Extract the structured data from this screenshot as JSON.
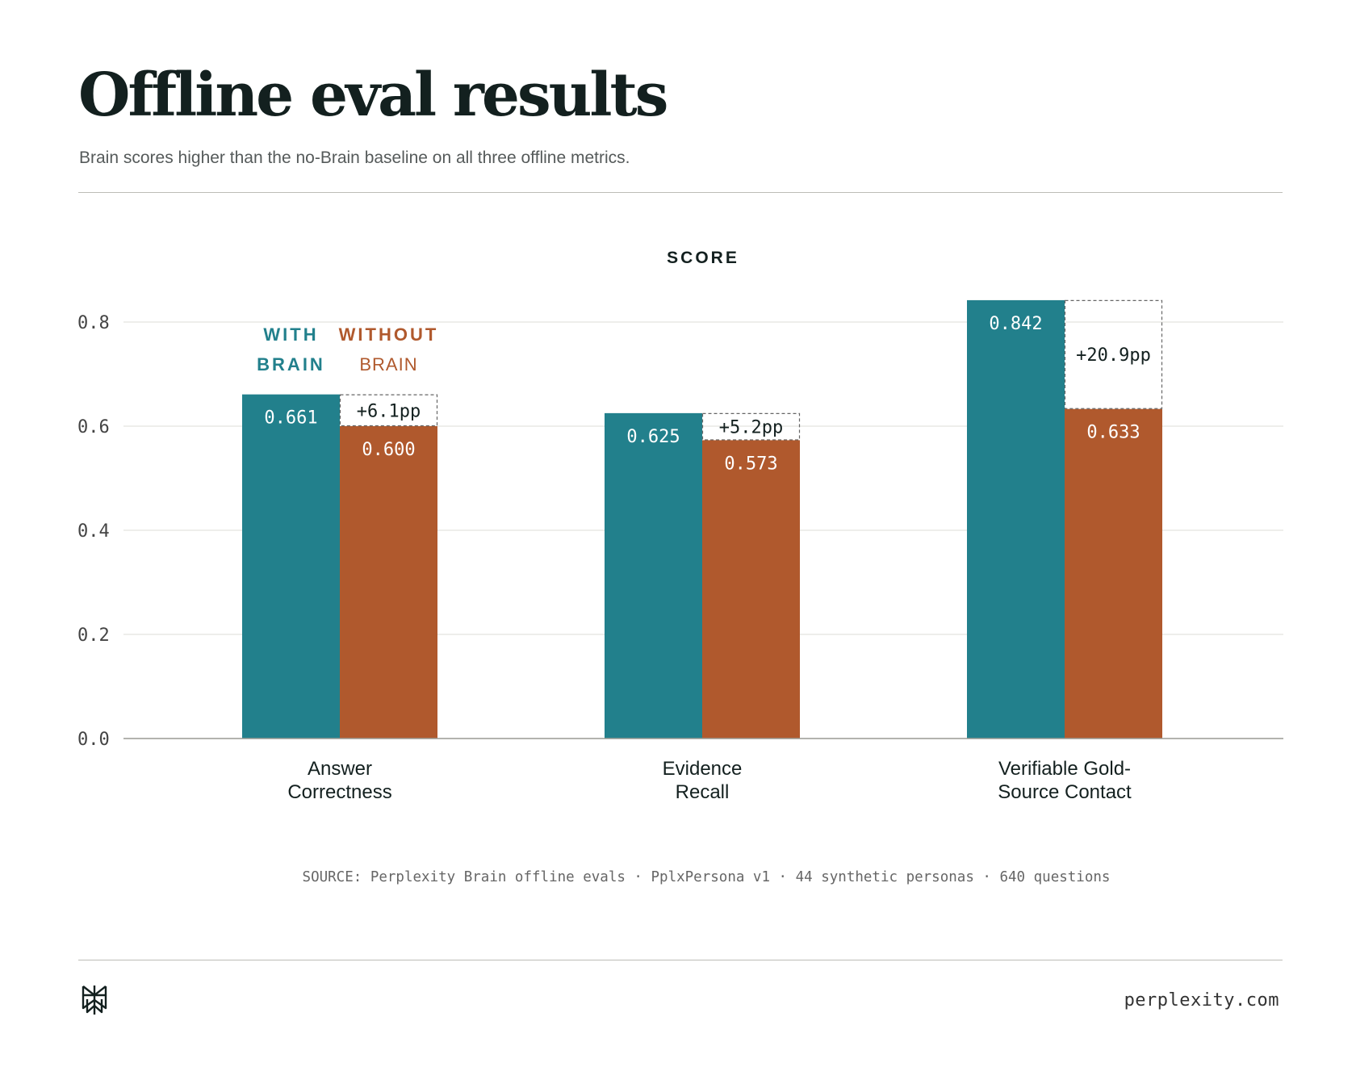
{
  "header": {
    "title": "Offline eval results",
    "subtitle": "Brain scores higher than the no-Brain baseline on all three offline metrics."
  },
  "legend": {
    "with_line1": "WITH",
    "with_line2": "BRAIN",
    "without_line1": "WITHOUT",
    "without_line2": "BRAIN"
  },
  "colors": {
    "with_brain": "#22808c",
    "without_brain": "#b0592d",
    "text": "#13201f",
    "grid": "#e3e3df",
    "axis": "#9a9a94"
  },
  "chart_data": {
    "type": "bar",
    "ylabel": "SCORE",
    "ylim": [
      0,
      0.8
    ],
    "yticks": [
      "0.0",
      "0.2",
      "0.4",
      "0.6",
      "0.8"
    ],
    "grid": true,
    "categories": [
      [
        "Answer",
        "Correctness"
      ],
      [
        "Evidence",
        "Recall"
      ],
      [
        "Verifiable Gold-",
        "Source Contact"
      ]
    ],
    "series": [
      {
        "name": "WITH BRAIN",
        "values": [
          0.661,
          0.625,
          0.842
        ],
        "labels": [
          "0.661",
          "0.625",
          "0.842"
        ]
      },
      {
        "name": "WITHOUT BRAIN",
        "values": [
          0.6,
          0.573,
          0.633
        ],
        "labels": [
          "0.600",
          "0.573",
          "0.633"
        ]
      }
    ],
    "deltas": [
      "+6.1pp",
      "+5.2pp",
      "+20.9pp"
    ]
  },
  "footer": {
    "source": "SOURCE: Perplexity Brain offline evals · PplxPersona v1 · 44 synthetic personas · 640 questions",
    "site": "perplexity.com",
    "logo_icon": "perplexity-logo-icon"
  }
}
